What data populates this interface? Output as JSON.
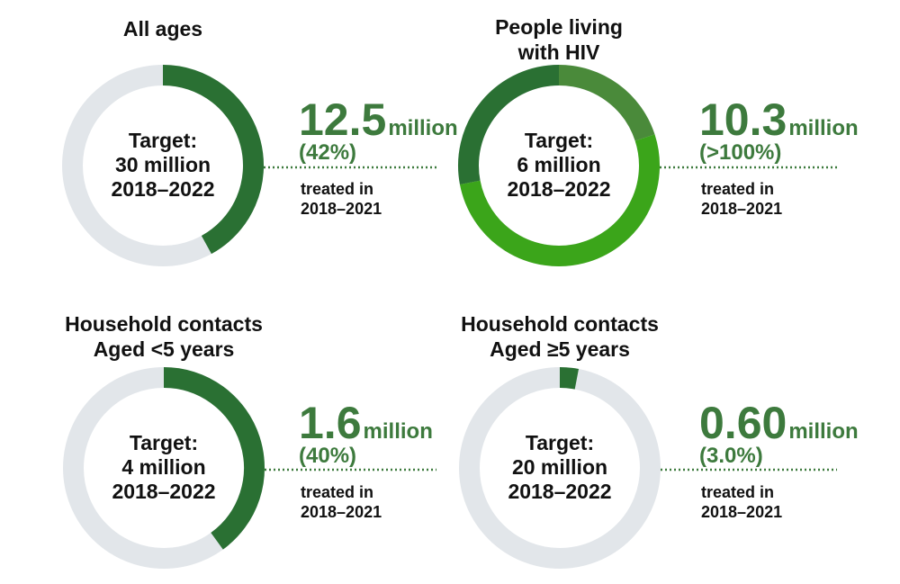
{
  "colors": {
    "track": "#e2e6ea",
    "primary": "#2a7033",
    "text_green": "#3d7a3d",
    "hiv_light": "#3ba51a",
    "hiv_mid": "#4a8a3a",
    "dotted": "#3d7a3d"
  },
  "chart_data": [
    {
      "type": "pie",
      "title_lines": [
        "All ages"
      ],
      "center_lines": [
        "Target:",
        "30 million",
        "2018–2022"
      ],
      "value": "12.5",
      "unit": "million",
      "percent_label": "(42%)",
      "note_lines": [
        "treated in",
        "2018–2021"
      ],
      "segments": [
        {
          "fraction": 0.42,
          "color": "#2a7033"
        }
      ]
    },
    {
      "type": "pie",
      "title_lines": [
        "People living",
        "with HIV"
      ],
      "center_lines": [
        "Target:",
        "6 million",
        "2018–2022"
      ],
      "value": "10.3",
      "unit": "million",
      "percent_label": "(>100%)",
      "note_lines": [
        "treated in",
        "2018–2021"
      ],
      "segments": [
        {
          "fraction": 0.2,
          "color": "#4a8a3a"
        },
        {
          "fraction": 0.52,
          "color": "#3ba51a"
        },
        {
          "fraction": 0.28,
          "color": "#2a7033"
        }
      ]
    },
    {
      "type": "pie",
      "title_lines": [
        "Household contacts",
        "Aged <5 years"
      ],
      "center_lines": [
        "Target:",
        "4 million",
        "2018–2022"
      ],
      "value": "1.6",
      "unit": "million",
      "percent_label": "(40%)",
      "note_lines": [
        "treated in",
        "2018–2021"
      ],
      "segments": [
        {
          "fraction": 0.4,
          "color": "#2a7033"
        }
      ]
    },
    {
      "type": "pie",
      "title_lines": [
        "Household contacts",
        "Aged ≥5 years"
      ],
      "center_lines": [
        "Target:",
        "20 million",
        "2018–2022"
      ],
      "value": "0.60",
      "unit": "million",
      "percent_label": "(3.0%)",
      "note_lines": [
        "treated in",
        "2018–2021"
      ],
      "segments": [
        {
          "fraction": 0.03,
          "color": "#2a7033"
        }
      ]
    }
  ]
}
